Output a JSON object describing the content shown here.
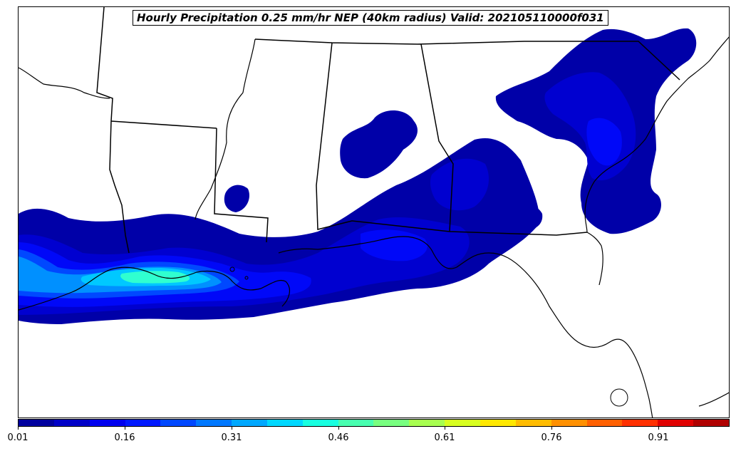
{
  "map": {
    "title": "Hourly Precipitation 0.25 mm/hr NEP (40km radius) Valid: 202105110000f031"
  },
  "colorbar": {
    "colors": [
      "#00009f",
      "#0000c8",
      "#0000ef",
      "#0018ff",
      "#0048ff",
      "#0078ff",
      "#00a8ff",
      "#00d8ff",
      "#18ffe0",
      "#48ffb0",
      "#78ff80",
      "#a8ff50",
      "#d8ff20",
      "#ffe800",
      "#ffbc00",
      "#ff9000",
      "#ff6000",
      "#ff3000",
      "#e00000",
      "#b00000"
    ],
    "tick_labels": [
      "0.01",
      "0.16",
      "0.31",
      "0.46",
      "0.61",
      "0.76",
      "0.91"
    ]
  }
}
